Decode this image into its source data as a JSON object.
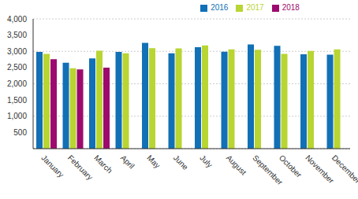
{
  "chart_data": {
    "type": "bar",
    "categories": [
      "January",
      "February",
      "March",
      "April",
      "May",
      "June",
      "July",
      "August",
      "September",
      "October",
      "November",
      "December"
    ],
    "series": [
      {
        "name": "2016",
        "color": "#1170b6",
        "values": [
          2980,
          2650,
          2780,
          2980,
          3260,
          2940,
          3130,
          2990,
          3210,
          3170,
          2910,
          2900
        ]
      },
      {
        "name": "2017",
        "color": "#b8d532",
        "values": [
          2920,
          2480,
          3020,
          2940,
          3100,
          3090,
          3180,
          3060,
          3050,
          2920,
          3010,
          3060
        ]
      },
      {
        "name": "2018",
        "color": "#9c0a6e",
        "values": [
          2760,
          2440,
          2500,
          null,
          null,
          null,
          null,
          null,
          null,
          null,
          null,
          null
        ]
      }
    ],
    "ylim": [
      0,
      4000
    ],
    "yticks": [
      500,
      {
        "value": 1000,
        "label": "1,000"
      },
      {
        "value": 1500,
        "label": "1,500"
      },
      {
        "value": 2000,
        "label": "2,000"
      },
      {
        "value": 2500,
        "label": "2,500"
      },
      {
        "value": 3000,
        "label": "3,000"
      },
      {
        "value": 3500,
        "label": "3,500"
      },
      {
        "value": 4000,
        "label": "4,000"
      }
    ],
    "grid": true,
    "legend": "top"
  }
}
